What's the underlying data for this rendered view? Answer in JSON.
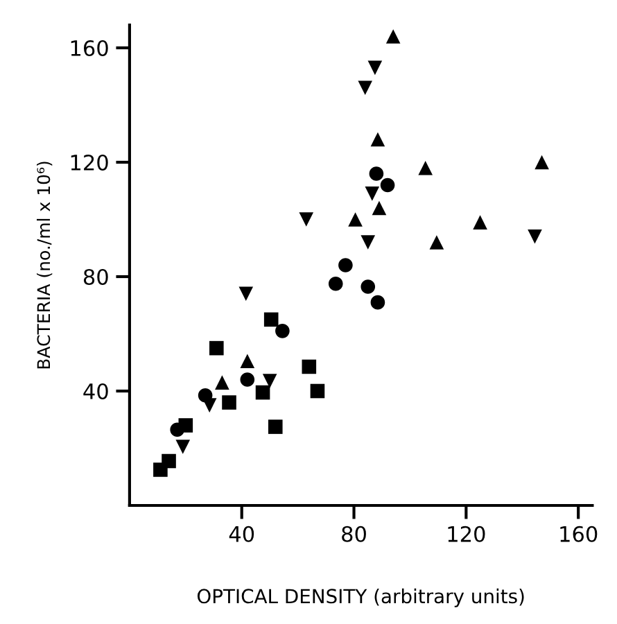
{
  "chart_data": {
    "type": "scatter",
    "xlabel": "OPTICAL DENSITY (arbitrary units)",
    "ylabel": "BACTERIA (no./ml x 10⁶)",
    "xlim": [
      0,
      165
    ],
    "ylim": [
      0,
      168
    ],
    "xticks": [
      40,
      80,
      120,
      160
    ],
    "yticks": [
      40,
      80,
      120,
      160
    ],
    "grid": false,
    "legend": false,
    "series": [
      {
        "color": "#000000",
        "marker": "triangle",
        "x": [
          94,
          88.5,
          105.5,
          147,
          89,
          80.5,
          125,
          109.5,
          42,
          33
        ],
        "values": [
          164,
          128,
          118,
          120,
          104,
          100,
          99,
          92,
          50.5,
          43
        ]
      },
      {
        "color": "#000000",
        "marker": "triangle_down",
        "x": [
          87.5,
          84,
          86.5,
          85,
          144.5,
          63,
          41.5,
          50,
          28.5,
          19
        ],
        "values": [
          153,
          146,
          109,
          92,
          94,
          100,
          74,
          43.5,
          35,
          20.5
        ]
      },
      {
        "color": "#000000",
        "marker": "circle",
        "x": [
          88,
          92,
          77,
          73.5,
          85,
          88.5,
          54.5,
          42,
          27,
          17
        ],
        "values": [
          116,
          112,
          84,
          77.5,
          76.5,
          71,
          61,
          44,
          38.5,
          26.5
        ]
      },
      {
        "color": "#000000",
        "marker": "square",
        "x": [
          31,
          50.5,
          64,
          35.5,
          47.5,
          67,
          52,
          20,
          14,
          11
        ],
        "values": [
          55,
          65,
          48.5,
          36,
          39.5,
          40,
          27.5,
          28,
          15.5,
          12.5
        ]
      }
    ]
  }
}
